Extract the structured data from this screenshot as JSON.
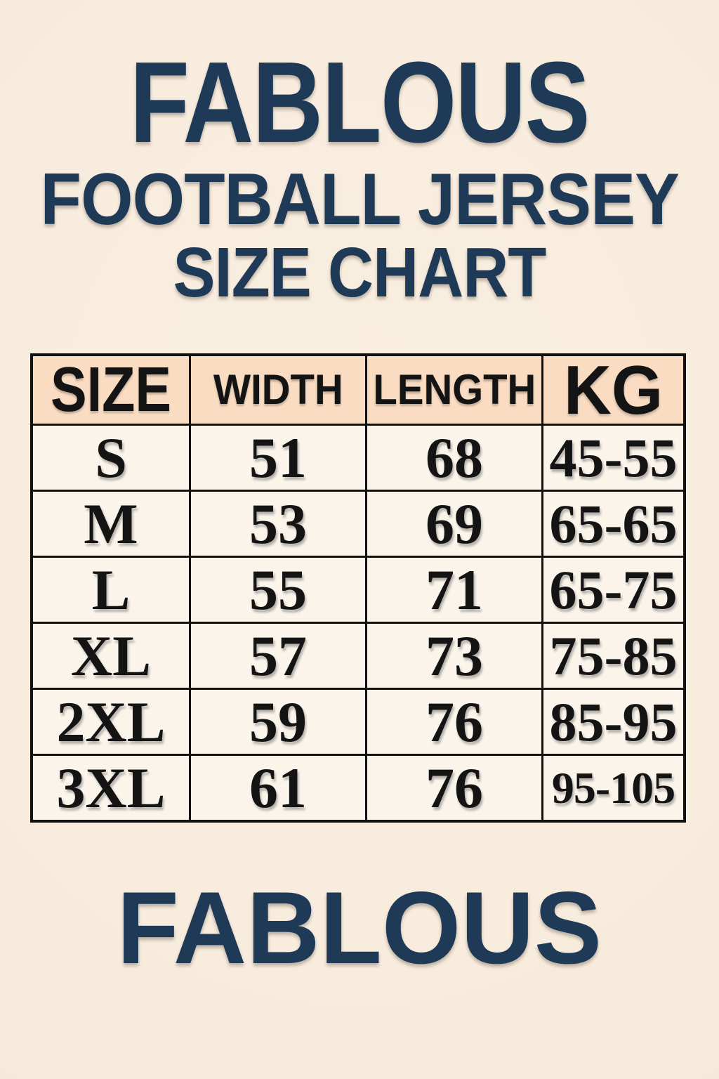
{
  "page": {
    "background_color": "#f7ebdc",
    "accent_navy": "#1e3a57",
    "table_header_bg": "#f9dcc2",
    "table_cell_bg": "#faf4eb",
    "ink_color": "#141414"
  },
  "branding": {
    "top_brand": "FABLOUS",
    "subtitle_line1": "FOOTBALL JERSEY",
    "subtitle_line2": "SIZE CHART",
    "bottom_brand": "FABLOUS"
  },
  "size_chart": {
    "columns": [
      "SIZE",
      "WIDTH",
      "LENGTH",
      "KG"
    ],
    "rows": [
      {
        "size": "S",
        "width": "51",
        "length": "68",
        "kg": "45-55"
      },
      {
        "size": "M",
        "width": "53",
        "length": "69",
        "kg": "65-65"
      },
      {
        "size": "L",
        "width": "55",
        "length": "71",
        "kg": "65-75"
      },
      {
        "size": "XL",
        "width": "57",
        "length": "73",
        "kg": "75-85"
      },
      {
        "size": "2XL",
        "width": "59",
        "length": "76",
        "kg": "85-95"
      },
      {
        "size": "3XL",
        "width": "61",
        "length": "76",
        "kg": "95-105"
      }
    ]
  }
}
